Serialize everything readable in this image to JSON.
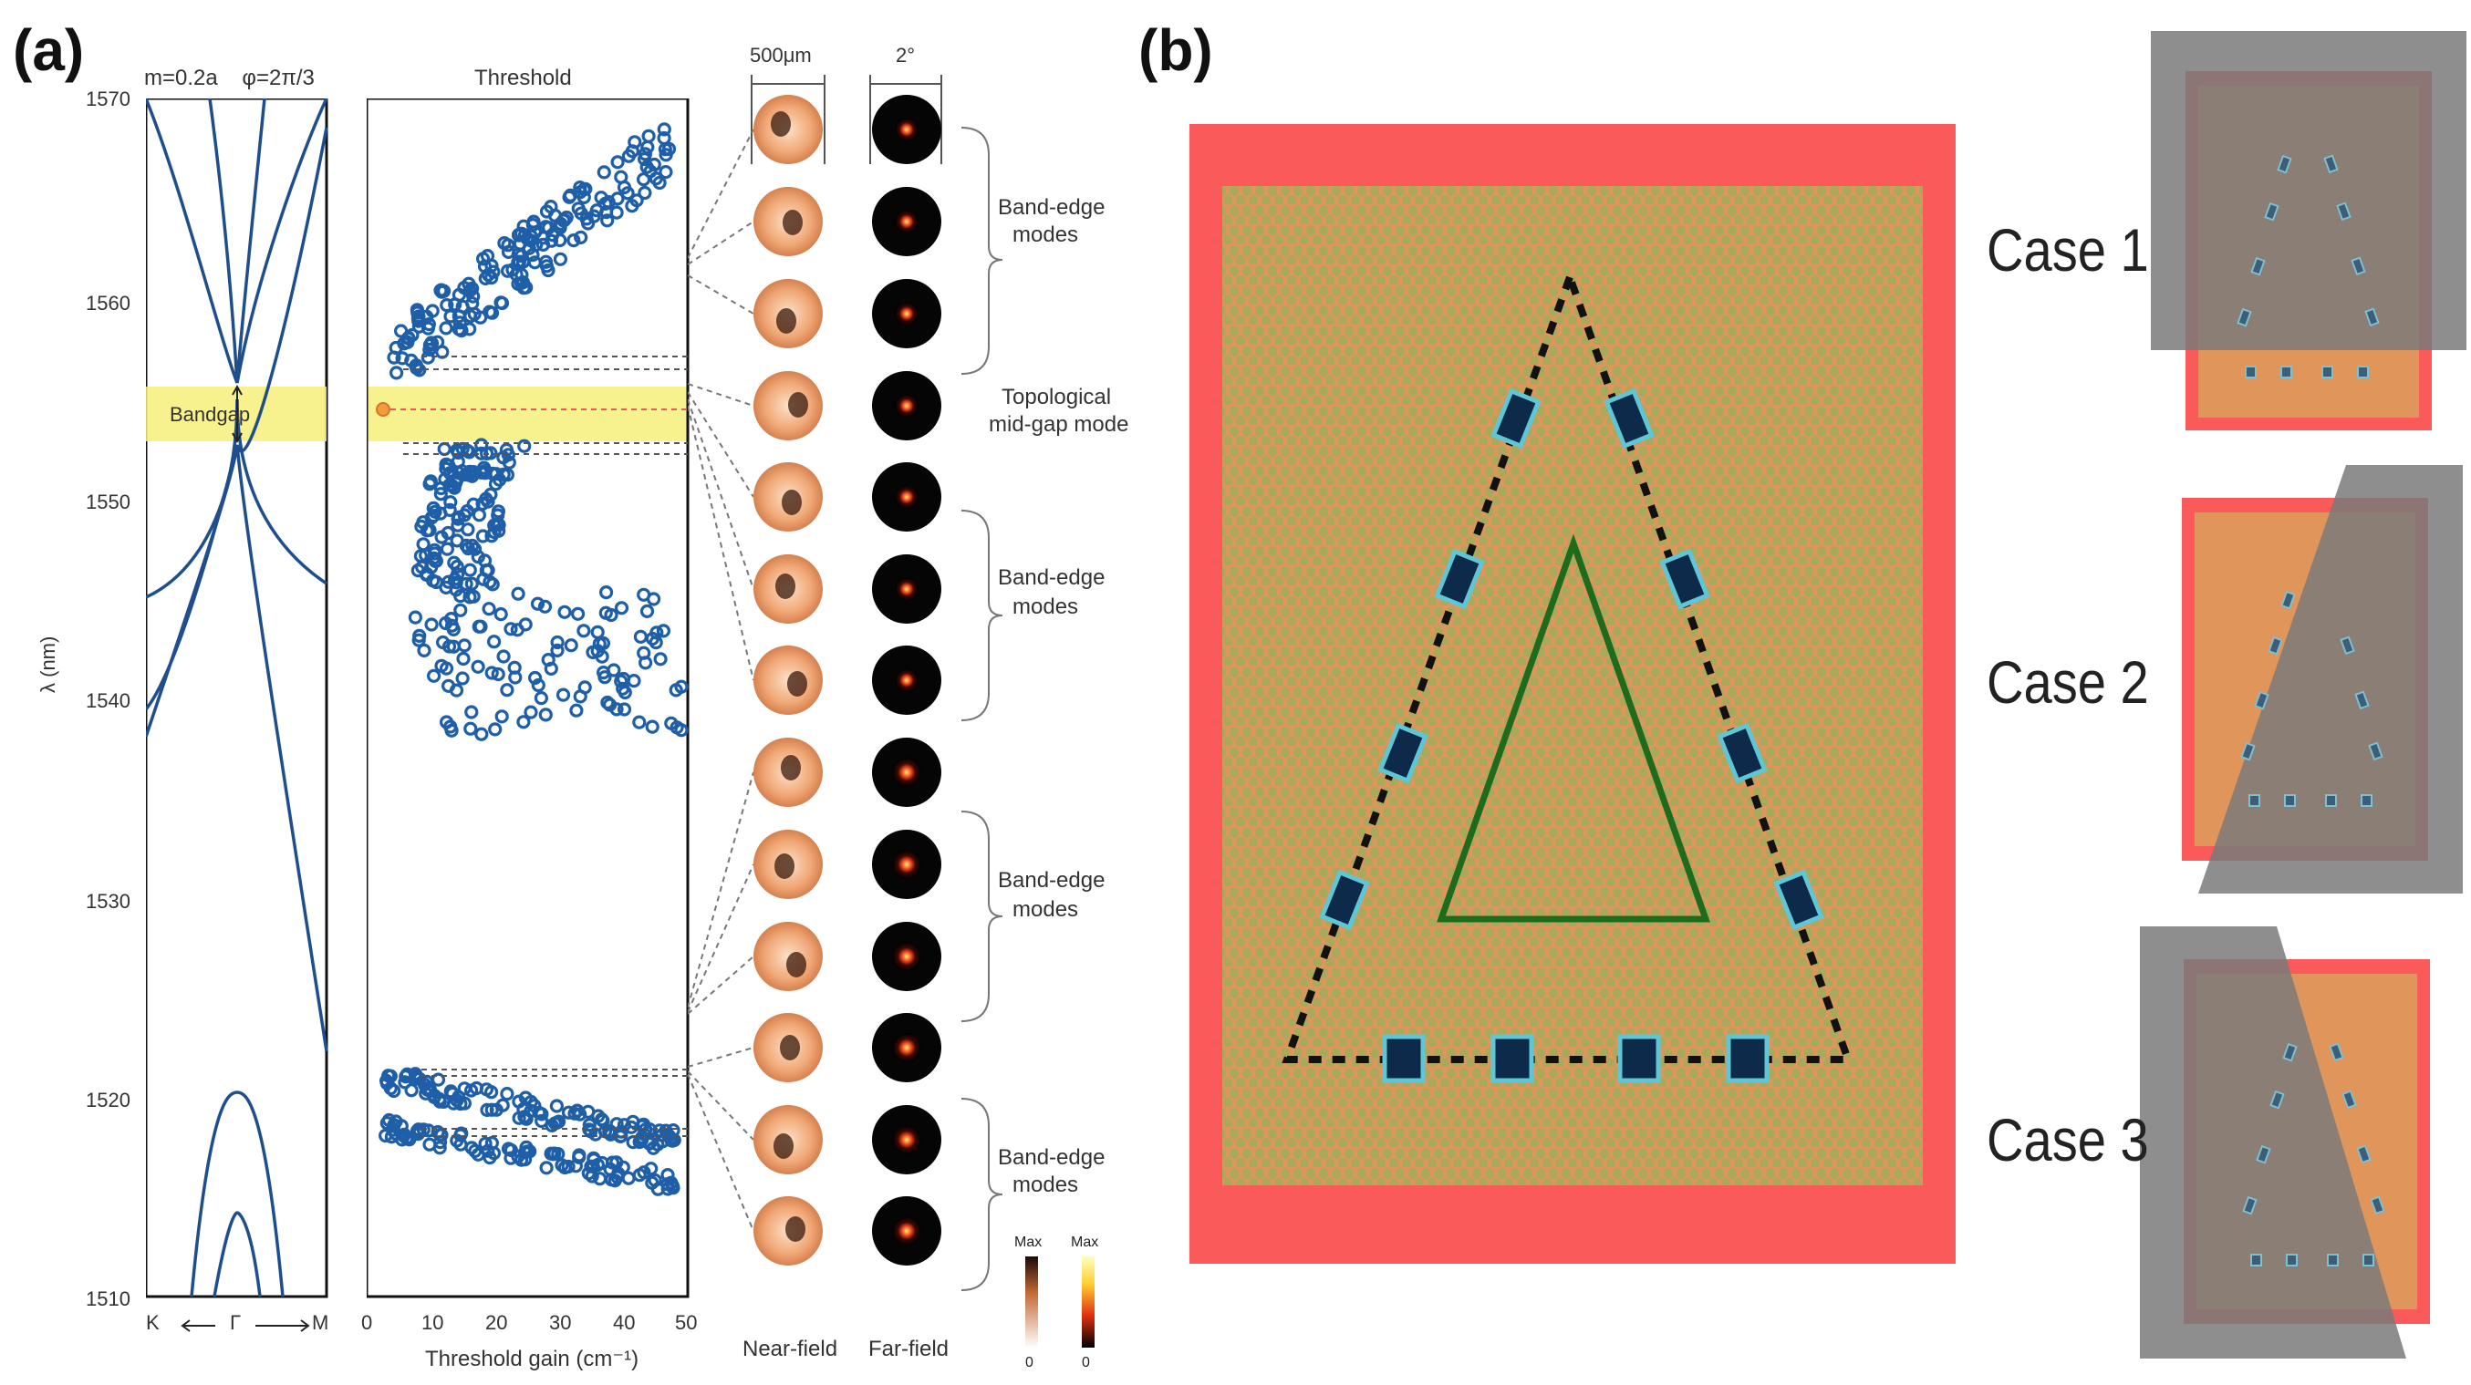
{
  "panel_a": {
    "label": "(a)",
    "band": {
      "params": "m=0.2a    φ=2π/3",
      "ylabel": "λ (nm)",
      "y_ticks": [
        "1570",
        "1560",
        "1550",
        "1540",
        "1530",
        "1520",
        "1510"
      ],
      "x_axis": {
        "k": "K",
        "gamma": "Γ",
        "m": "M"
      },
      "bandgap_label": "Bandgap"
    },
    "threshold": {
      "title": "Threshold",
      "xlabel": "Threshold gain (cm⁻¹)",
      "x_ticks": [
        "0",
        "10",
        "20",
        "30",
        "40",
        "50"
      ]
    },
    "modes": {
      "near_scale": "500μm",
      "far_scale": "2°",
      "near_label": "Near-field",
      "far_label": "Far-field",
      "groups": [
        {
          "label_1": "Band-edge",
          "label_2": "modes"
        },
        {
          "label_1": "Topological",
          "label_2": "mid-gap mode"
        },
        {
          "label_1": "Band-edge",
          "label_2": "modes"
        },
        {
          "label_1": "Band-edge",
          "label_2": "modes"
        },
        {
          "label_1": "Band-edge",
          "label_2": "modes"
        }
      ],
      "colorbar": {
        "max": "Max",
        "min": "0"
      }
    }
  },
  "panel_b": {
    "label": "(b)",
    "cases": [
      "Case 1",
      "Case 2",
      "Case 3"
    ]
  },
  "colors": {
    "band_line": "#1f4e8c",
    "circle": "#1f5fa8",
    "bandgap_fill": "#f7f07a",
    "cavity_red": "#fa5a5a",
    "lattice_bg": "#e0955a",
    "pillar": "#a9a95c",
    "defect_dark": "#0d2a4a",
    "defect_edge": "#5fc6d6",
    "inner_triangle": "#1e6b1e",
    "mask_gray": "#7a7a7a"
  }
}
